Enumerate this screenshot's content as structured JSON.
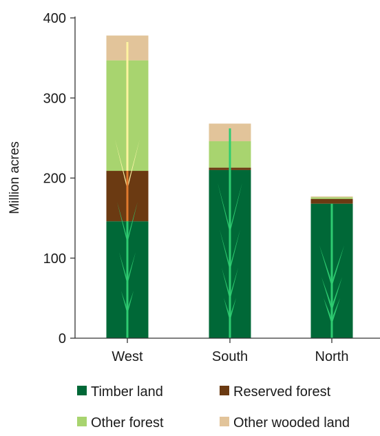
{
  "chart_data": {
    "type": "bar",
    "stacked": true,
    "title": "",
    "xlabel": "",
    "ylabel": "Million acres",
    "ylim": [
      0,
      400
    ],
    "yticks": [
      0,
      100,
      200,
      300,
      400
    ],
    "categories": [
      "West",
      "South",
      "North"
    ],
    "series": [
      {
        "name": "Timber land",
        "color": "#006837",
        "values": [
          146,
          210,
          168
        ]
      },
      {
        "name": "Reserved forest",
        "color": "#6b3a12",
        "values": [
          63,
          3,
          6
        ]
      },
      {
        "name": "Other forest",
        "color": "#a8d46f",
        "values": [
          138,
          33,
          2
        ]
      },
      {
        "name": "Other wooded land",
        "color": "#e2c49a",
        "values": [
          31,
          22,
          1
        ]
      }
    ],
    "grid": false,
    "legend_position": "bottom",
    "decoration": "stylized-plant-stems"
  }
}
